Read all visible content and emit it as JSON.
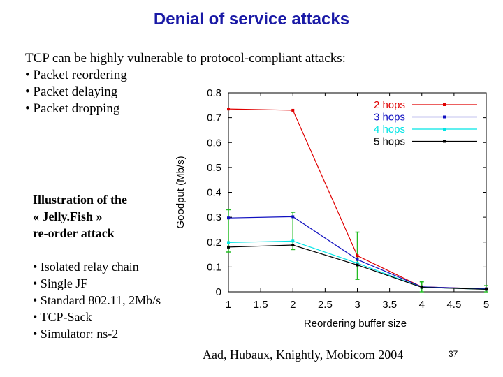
{
  "slide": {
    "title": "Denial of service attacks",
    "intro_lines": [
      "TCP can be highly vulnerable to protocol-compliant attacks:",
      "• Packet reordering",
      "• Packet delaying",
      "• Packet dropping"
    ],
    "illustration_lines": [
      "Illustration of the",
      "« Jelly.Fish »",
      "re-order attack"
    ],
    "bullets": [
      "• Isolated relay chain",
      "• Single JF",
      "• Standard 802.11, 2Mb/s",
      "• TCP-Sack",
      "• Simulator: ns-2"
    ],
    "citation": "Aad, Hubaux, Knightly, Mobicom 2004",
    "page_number": "37"
  },
  "chart_data": {
    "type": "line",
    "xlabel": "Reordering buffer size",
    "ylabel": "Goodput (Mb/s)",
    "xlim": [
      1,
      5
    ],
    "ylim": [
      0,
      0.8
    ],
    "x_ticks": [
      "1",
      "1.5",
      "2",
      "2.5",
      "3",
      "3.5",
      "4",
      "4.5",
      "5"
    ],
    "y_ticks": [
      "0",
      "0.1",
      "0.2",
      "0.3",
      "0.4",
      "0.5",
      "0.6",
      "0.7",
      "0.8"
    ],
    "x": [
      1,
      2,
      3,
      4,
      5
    ],
    "legend_position": "top-right",
    "grid": false,
    "series": [
      {
        "name": "2 hops",
        "color": "#e00000",
        "values": [
          0.735,
          0.73,
          0.145,
          0.02,
          0.012
        ]
      },
      {
        "name": "3 hops",
        "color": "#1010c0",
        "values": [
          0.297,
          0.302,
          0.13,
          0.02,
          0.012
        ]
      },
      {
        "name": "4 hops",
        "color": "#00e5e5",
        "values": [
          0.198,
          0.204,
          0.115,
          0.018,
          0.01
        ]
      },
      {
        "name": "5 hops",
        "color": "#000000",
        "values": [
          0.18,
          0.188,
          0.108,
          0.018,
          0.01
        ]
      }
    ],
    "error_bar_color": "#22bb22",
    "error_bars": [
      {
        "x": 1,
        "low": 0.16,
        "high": 0.33
      },
      {
        "x": 2,
        "low": 0.17,
        "high": 0.32
      },
      {
        "x": 3,
        "low": 0.05,
        "high": 0.24
      },
      {
        "x": 4,
        "low": 0.0,
        "high": 0.04
      },
      {
        "x": 5,
        "low": 0.0,
        "high": 0.025
      }
    ]
  }
}
